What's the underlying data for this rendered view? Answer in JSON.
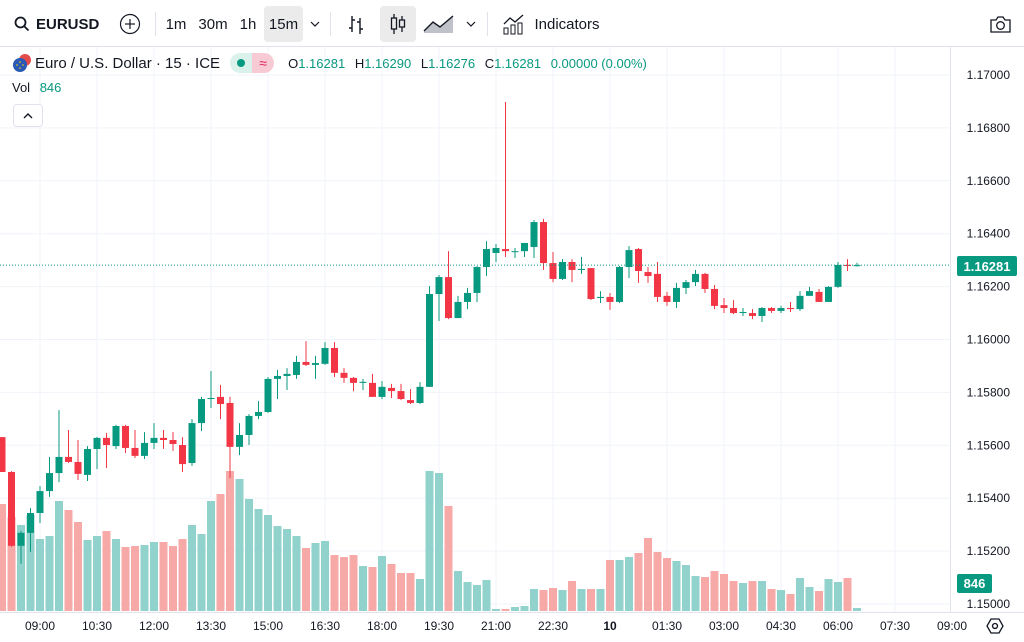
{
  "toolbar": {
    "symbol": "EURUSD",
    "intervals": [
      "1m",
      "30m",
      "1h",
      "15m"
    ],
    "active_interval": "15m",
    "indicators_label": "Indicators"
  },
  "legend": {
    "title": "Euro / U.S. Dollar · 15 · ICE",
    "o_label": "O",
    "o": "1.16281",
    "h_label": "H",
    "h": "1.16290",
    "l_label": "L",
    "l": "1.16276",
    "c_label": "C",
    "c": "1.16281",
    "change": "0.00000 (0.00%)",
    "status_icon": "≈"
  },
  "volume_legend": {
    "label": "Vol",
    "value": "846"
  },
  "price_scale": {
    "labels": [
      "1.17000",
      "1.16800",
      "1.16600",
      "1.16400",
      "1.16200",
      "1.16000",
      "1.15800",
      "1.15600",
      "1.15400",
      "1.15200",
      "1.15000"
    ],
    "last_price": "1.16281",
    "last_volume": "846"
  },
  "colors": {
    "up": "#089981",
    "down": "#f23645",
    "up_vol": "#92d2cc",
    "down_vol": "#f7a9a7"
  },
  "chart_data": {
    "type": "candlestick",
    "interval": "15m",
    "ylim": [
      1.15,
      1.17
    ],
    "last_price": 1.16281,
    "time_labels": [
      {
        "i": 4,
        "t": "09:00"
      },
      {
        "i": 10,
        "t": "10:30"
      },
      {
        "i": 16,
        "t": "12:00"
      },
      {
        "i": 22,
        "t": "13:30"
      },
      {
        "i": 28,
        "t": "15:00"
      },
      {
        "i": 34,
        "t": "16:30"
      },
      {
        "i": 40,
        "t": "18:00"
      },
      {
        "i": 46,
        "t": "19:30"
      },
      {
        "i": 52,
        "t": "21:00"
      },
      {
        "i": 58,
        "t": "22:30"
      },
      {
        "i": 64,
        "t": "10"
      },
      {
        "i": 70,
        "t": "01:30"
      },
      {
        "i": 76,
        "t": "03:00"
      },
      {
        "i": 82,
        "t": "04:30"
      },
      {
        "i": 88,
        "t": "06:00"
      },
      {
        "i": 94,
        "t": "07:30"
      },
      {
        "i": 100,
        "t": "09:00"
      }
    ],
    "ohlc": [
      [
        1.15631,
        1.15631,
        1.15499,
        1.15499
      ],
      [
        1.15499,
        1.15503,
        1.15216,
        1.1522
      ],
      [
        1.1522,
        1.15276,
        1.15152,
        1.15269
      ],
      [
        1.15269,
        1.15363,
        1.15197,
        1.15344
      ],
      [
        1.15344,
        1.15446,
        1.15306,
        1.15427
      ],
      [
        1.15427,
        1.15556,
        1.15405,
        1.15495
      ],
      [
        1.15495,
        1.15733,
        1.15461,
        1.15556
      ],
      [
        1.15556,
        1.15658,
        1.15533,
        1.15537
      ],
      [
        1.15537,
        1.1562,
        1.15469,
        1.15492
      ],
      [
        1.15488,
        1.15597,
        1.15465,
        1.15586
      ],
      [
        1.15586,
        1.15632,
        1.1551,
        1.15628
      ],
      [
        1.15628,
        1.15647,
        1.15514,
        1.15601
      ],
      [
        1.15597,
        1.15677,
        1.15586,
        1.15673
      ],
      [
        1.15673,
        1.15677,
        1.15571,
        1.1559
      ],
      [
        1.1559,
        1.15658,
        1.15552,
        1.1556
      ],
      [
        1.1556,
        1.1565,
        1.15548,
        1.15609
      ],
      [
        1.15609,
        1.15684,
        1.15586,
        1.15628
      ],
      [
        1.15628,
        1.15658,
        1.15586,
        1.1562
      ],
      [
        1.1562,
        1.1565,
        1.15579,
        1.15605
      ],
      [
        1.15601,
        1.15631,
        1.15499,
        1.15529
      ],
      [
        1.15533,
        1.15699,
        1.15522,
        1.15684
      ],
      [
        1.15684,
        1.15783,
        1.15654,
        1.15775
      ],
      [
        1.15775,
        1.15881,
        1.15741,
        1.15779
      ],
      [
        1.15783,
        1.15828,
        1.15699,
        1.15756
      ],
      [
        1.1576,
        1.15783,
        1.15476,
        1.15594
      ],
      [
        1.15594,
        1.15684,
        1.15563,
        1.15639
      ],
      [
        1.15639,
        1.15718,
        1.15601,
        1.15711
      ],
      [
        1.15711,
        1.15767,
        1.15699,
        1.15726
      ],
      [
        1.15726,
        1.15858,
        1.15722,
        1.15851
      ],
      [
        1.15851,
        1.15885,
        1.15775,
        1.15862
      ],
      [
        1.15862,
        1.15892,
        1.15809,
        1.1587
      ],
      [
        1.15866,
        1.15938,
        1.15851,
        1.15915
      ],
      [
        1.15915,
        1.15994,
        1.159,
        1.15904
      ],
      [
        1.15904,
        1.15938,
        1.15851,
        1.15911
      ],
      [
        1.15908,
        1.1599,
        1.15904,
        1.15968
      ],
      [
        1.15968,
        1.1599,
        1.15858,
        1.15874
      ],
      [
        1.15874,
        1.15892,
        1.15836,
        1.15855
      ],
      [
        1.15855,
        1.15858,
        1.15805,
        1.15836
      ],
      [
        1.15836,
        1.15851,
        1.15809,
        1.1584
      ],
      [
        1.15836,
        1.1587,
        1.15783,
        1.15783
      ],
      [
        1.15783,
        1.15843,
        1.15775,
        1.15821
      ],
      [
        1.15817,
        1.15832,
        1.15779,
        1.15805
      ],
      [
        1.15805,
        1.15832,
        1.15771,
        1.15775
      ],
      [
        1.15771,
        1.15813,
        1.15756,
        1.1576
      ],
      [
        1.1576,
        1.15839,
        1.15756,
        1.15821
      ],
      [
        1.15821,
        1.16202,
        1.15821,
        1.16172
      ],
      [
        1.16172,
        1.16244,
        1.1607,
        1.16236
      ],
      [
        1.16236,
        1.16334,
        1.16077,
        1.16081
      ],
      [
        1.16081,
        1.16165,
        1.16081,
        1.16142
      ],
      [
        1.16142,
        1.16195,
        1.16115,
        1.16176
      ],
      [
        1.16176,
        1.16278,
        1.16142,
        1.16274
      ],
      [
        1.16274,
        1.16372,
        1.1624,
        1.16342
      ],
      [
        1.16327,
        1.16361,
        1.16293,
        1.16346
      ],
      [
        1.16342,
        1.16898,
        1.16312,
        1.16334
      ],
      [
        1.16331,
        1.16346,
        1.16308,
        1.16334
      ],
      [
        1.16334,
        1.16365,
        1.16312,
        1.16365
      ],
      [
        1.1635,
        1.16452,
        1.16308,
        1.16444
      ],
      [
        1.16444,
        1.16456,
        1.16263,
        1.16289
      ],
      [
        1.16289,
        1.16331,
        1.16217,
        1.16229
      ],
      [
        1.16229,
        1.16304,
        1.16225,
        1.16293
      ],
      [
        1.16293,
        1.16304,
        1.16217,
        1.16263
      ],
      [
        1.16263,
        1.16312,
        1.16248,
        1.16267
      ],
      [
        1.1627,
        1.1627,
        1.16149,
        1.16153
      ],
      [
        1.16157,
        1.16183,
        1.16138,
        1.16161
      ],
      [
        1.16161,
        1.16176,
        1.16112,
        1.16142
      ],
      [
        1.16142,
        1.16278,
        1.16138,
        1.16274
      ],
      [
        1.16274,
        1.16353,
        1.16232,
        1.16338
      ],
      [
        1.16342,
        1.16346,
        1.16214,
        1.16259
      ],
      [
        1.16255,
        1.16274,
        1.16214,
        1.1624
      ],
      [
        1.16248,
        1.16293,
        1.16142,
        1.16161
      ],
      [
        1.16165,
        1.1618,
        1.16127,
        1.16142
      ],
      [
        1.16142,
        1.16214,
        1.16119,
        1.16195
      ],
      [
        1.16195,
        1.16225,
        1.16172,
        1.16217
      ],
      [
        1.16217,
        1.16263,
        1.16202,
        1.16248
      ],
      [
        1.16248,
        1.16252,
        1.16176,
        1.16191
      ],
      [
        1.16191,
        1.16206,
        1.16115,
        1.16127
      ],
      [
        1.1613,
        1.16157,
        1.161,
        1.16119
      ],
      [
        1.16119,
        1.16149,
        1.16096,
        1.161
      ],
      [
        1.161,
        1.16119,
        1.16089,
        1.16104
      ],
      [
        1.161,
        1.16115,
        1.16077,
        1.16089
      ],
      [
        1.16089,
        1.16123,
        1.16066,
        1.16119
      ],
      [
        1.16119,
        1.16123,
        1.161,
        1.16108
      ],
      [
        1.16108,
        1.16127,
        1.161,
        1.16119
      ],
      [
        1.16119,
        1.16142,
        1.16104,
        1.16115
      ],
      [
        1.16115,
        1.16183,
        1.16108,
        1.16165
      ],
      [
        1.16165,
        1.16199,
        1.16165,
        1.16183
      ],
      [
        1.1618,
        1.16191,
        1.16142,
        1.16142
      ],
      [
        1.16142,
        1.16202,
        1.16142,
        1.16199
      ],
      [
        1.16199,
        1.16293,
        1.16195,
        1.16282
      ],
      [
        1.16282,
        1.16304,
        1.16259,
        1.16278
      ],
      [
        1.16281,
        1.1629,
        1.16276,
        1.16281
      ]
    ],
    "volume": [
      30174,
      26508,
      24252,
      27072,
      20304,
      21150,
      31020,
      28482,
      25098,
      20022,
      21150,
      22560,
      20304,
      18048,
      18330,
      18612,
      19458,
      19458,
      18330,
      20304,
      24252,
      21714,
      31020,
      32994,
      39480,
      37224,
      31584,
      28764,
      27072,
      23970,
      23124,
      21150,
      17766,
      19176,
      19740,
      15792,
      15228,
      15792,
      12690,
      12408,
      15510,
      13254,
      10716,
      10716,
      9024,
      39480,
      38916,
      29610,
      11280,
      8178,
      7332,
      8742,
      564,
      564,
      1128,
      1410,
      6204,
      5922,
      6486,
      5922,
      8460,
      6204,
      6204,
      6204,
      14382,
      14382,
      15228,
      16356,
      20586,
      16638,
      14946,
      14100,
      12972,
      9870,
      9588,
      11280,
      10434,
      8460,
      7896,
      8460,
      8460,
      6204,
      5922,
      4794,
      9306,
      6768,
      5640,
      9024,
      8178,
      9306,
      846
    ]
  }
}
